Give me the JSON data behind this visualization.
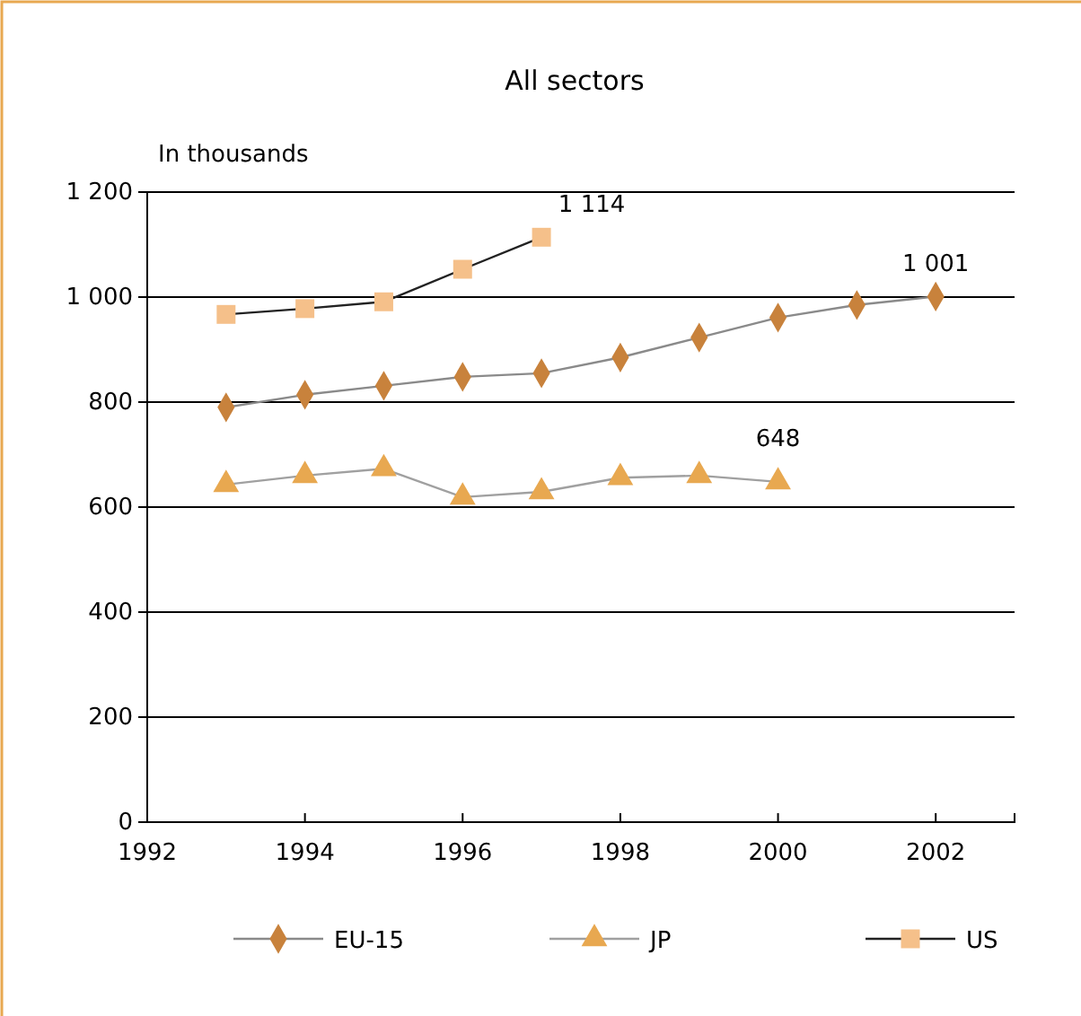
{
  "chart_data": {
    "type": "line",
    "title": "All sectors",
    "ylabel": "In thousands",
    "xlim": [
      1992,
      2003
    ],
    "xticks": [
      1992,
      1994,
      1996,
      1998,
      2000,
      2002
    ],
    "ylim": [
      0,
      1200
    ],
    "yticks": [
      0,
      200,
      400,
      600,
      800,
      {
        "value": 1000,
        "label": "1 000"
      },
      {
        "value": 1200,
        "label": "1 200"
      }
    ],
    "grid": "y",
    "legend": "bottom",
    "series": [
      {
        "name": "EU-15",
        "color": "#c8823c",
        "marker": "diamond",
        "x": [
          1993,
          1994,
          1995,
          1996,
          1997,
          1998,
          1999,
          2000,
          2001,
          2002
        ],
        "values": [
          790,
          814,
          831,
          848,
          855,
          885,
          923,
          961,
          985,
          1001
        ],
        "value_labels": [
          null,
          null,
          null,
          null,
          null,
          null,
          null,
          null,
          null,
          "1 001"
        ]
      },
      {
        "name": "JP",
        "color": "#e8a850",
        "marker": "triangle",
        "x": [
          1993,
          1994,
          1995,
          1996,
          1997,
          1998,
          1999,
          2000
        ],
        "values": [
          643,
          660,
          673,
          619,
          629,
          656,
          660,
          648
        ],
        "value_labels": [
          null,
          null,
          null,
          null,
          null,
          null,
          null,
          "648"
        ]
      },
      {
        "name": "US",
        "color": "#f5c08a",
        "marker": "square",
        "x": [
          1993,
          1994,
          1995,
          1996,
          1997
        ],
        "values": [
          967,
          978,
          991,
          1053,
          1114
        ],
        "value_labels": [
          null,
          null,
          null,
          null,
          "1 114"
        ]
      }
    ]
  }
}
